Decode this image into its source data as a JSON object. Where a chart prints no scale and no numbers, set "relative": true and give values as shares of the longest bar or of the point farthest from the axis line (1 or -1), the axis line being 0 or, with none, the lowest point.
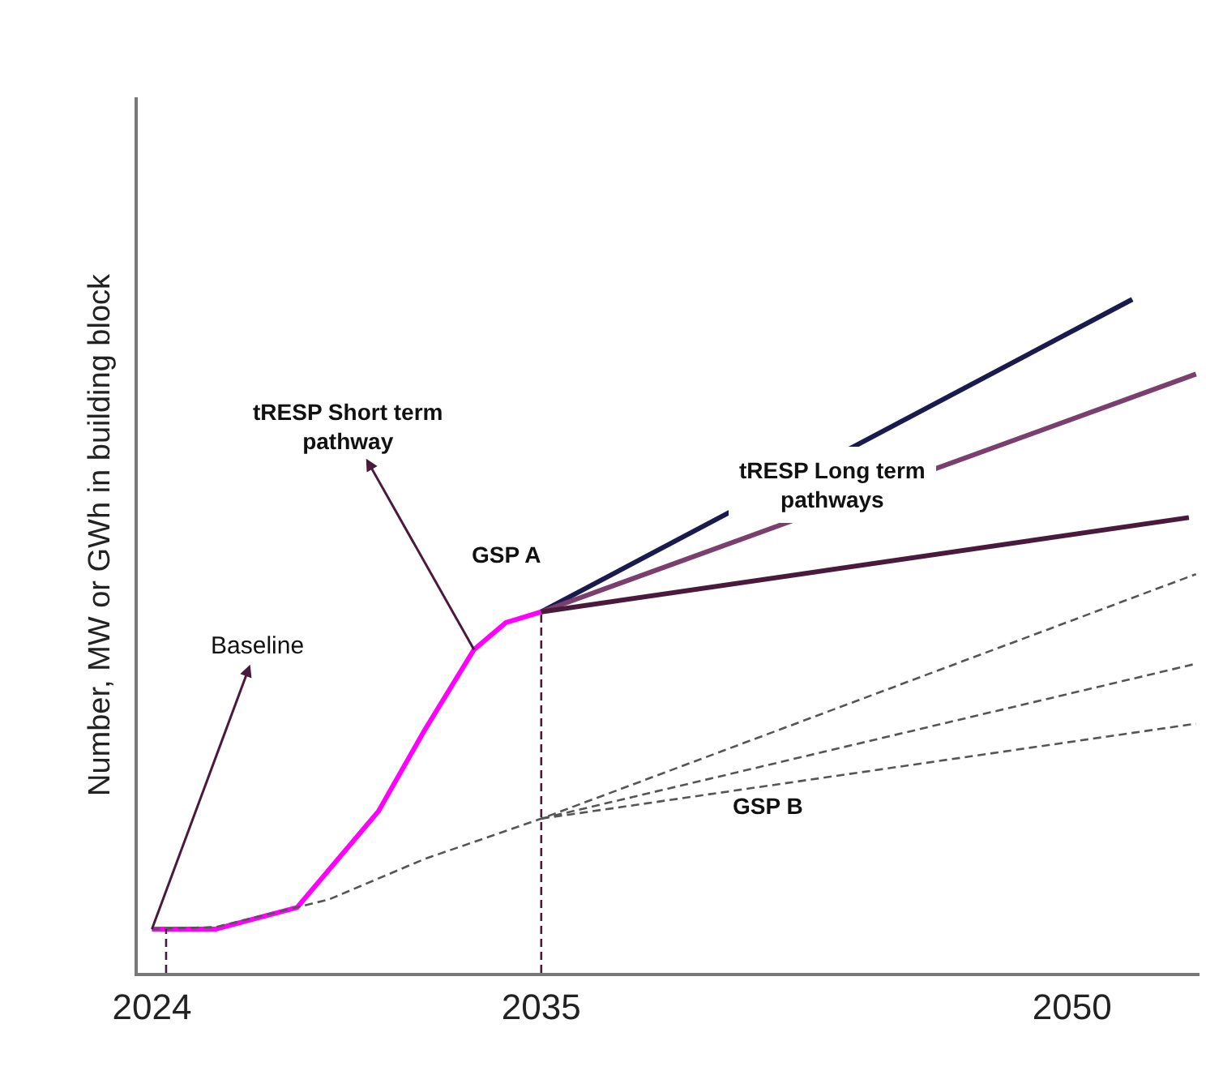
{
  "chart_data": {
    "type": "line",
    "relative": true,
    "ylabel": "Number, MW or GWh in building block",
    "xlim": [
      2023.6,
      2053.6
    ],
    "xticks": [
      2024,
      2035,
      2050
    ],
    "legend": false,
    "marker": "none",
    "series": [
      {
        "color": "#ff00ff",
        "line_style": "solid",
        "x": [
          2024,
          2025.8,
          2028.1,
          2030.4,
          2031.7,
          2033.1,
          2034,
          2035
        ],
        "values": [
          0.065,
          0.065,
          0.097,
          0.24,
          0.36,
          0.48,
          0.52,
          0.536
        ]
      },
      {
        "color": "#1a1a4e",
        "line_style": "solid",
        "x": [
          2035,
          2051.7
        ],
        "values": [
          0.536,
          1
        ]
      },
      {
        "color": "#7b3f6e",
        "line_style": "solid",
        "x": [
          2035,
          2053.5
        ],
        "values": [
          0.536,
          0.889
        ]
      },
      {
        "color": "#4a1a3c",
        "line_style": "solid",
        "x": [
          2035,
          2053.3
        ],
        "values": [
          0.536,
          0.676
        ]
      },
      {
        "color": "#555555",
        "line_style": "dashed",
        "x": [
          2024,
          2025.8,
          2029,
          2031.7,
          2035,
          2053.5
        ],
        "values": [
          0.065,
          0.068,
          0.109,
          0.169,
          0.229,
          0.592
        ]
      },
      {
        "color": "#555555",
        "line_style": "dashed",
        "x": [
          2035,
          2053.5
        ],
        "values": [
          0.229,
          0.459
        ]
      },
      {
        "color": "#555555",
        "line_style": "dashed",
        "x": [
          2035,
          2053.5
        ],
        "values": [
          0.229,
          0.37
        ]
      },
      {
        "color": "#4a1a3c",
        "line_style": "dashed",
        "x": [
          2024.4,
          2024.4
        ],
        "values": [
          0,
          0.065
        ]
      },
      {
        "color": "#4a1a3c",
        "line_style": "dashed",
        "x": [
          2035,
          2035
        ],
        "values": [
          0,
          0.536
        ]
      }
    ],
    "annotations": [
      "Baseline",
      "tRESP Short term\npathway",
      "GSP A",
      "tRESP Long term\npathways",
      "GSP B"
    ]
  }
}
